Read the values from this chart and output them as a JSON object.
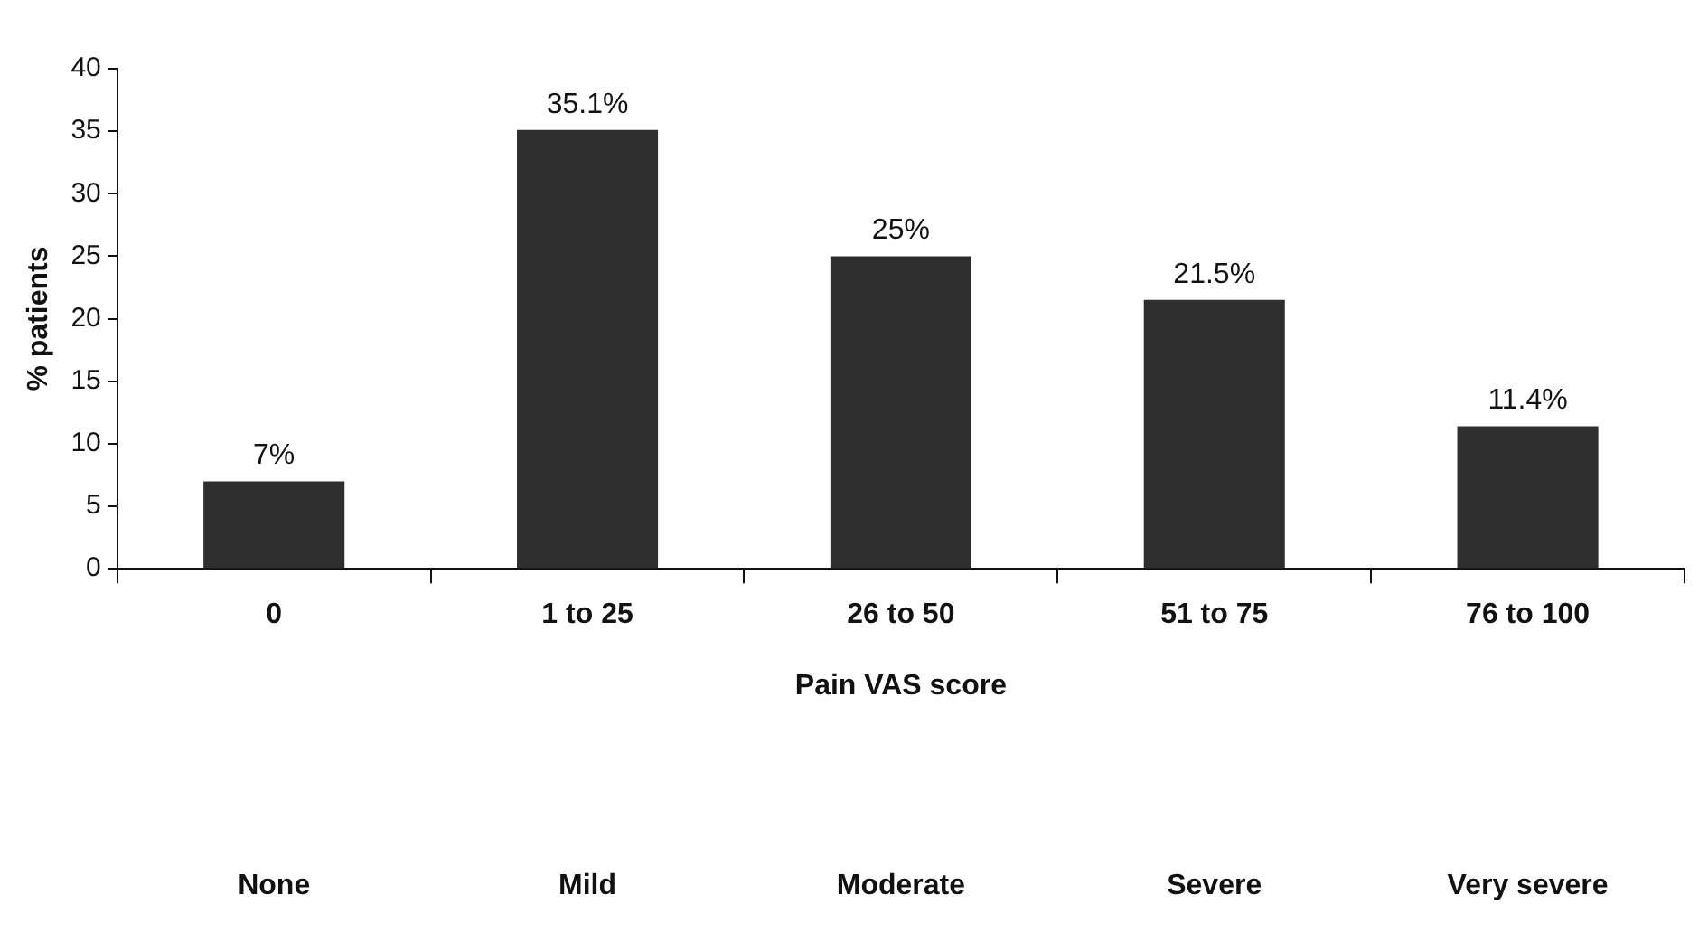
{
  "chart_data": {
    "type": "bar",
    "xlabel": "Pain VAS score",
    "ylabel": "% patients",
    "categories": [
      "0",
      "1 to 25",
      "26 to 50",
      "51 to 75",
      "76 to 100"
    ],
    "values": [
      7,
      35.1,
      25,
      21.5,
      11.4
    ],
    "value_labels": [
      "7%",
      "35.1%",
      "25%",
      "21.5%",
      "11.4%"
    ],
    "color": "#2e2e2e",
    "ylim": [
      0,
      40
    ],
    "yticks": [
      0,
      5,
      10,
      15,
      20,
      25,
      30,
      35,
      40
    ],
    "grid": false,
    "legend": false,
    "annotations": [
      "None",
      "Mild",
      "Moderate",
      "Severe",
      "Very severe"
    ]
  }
}
